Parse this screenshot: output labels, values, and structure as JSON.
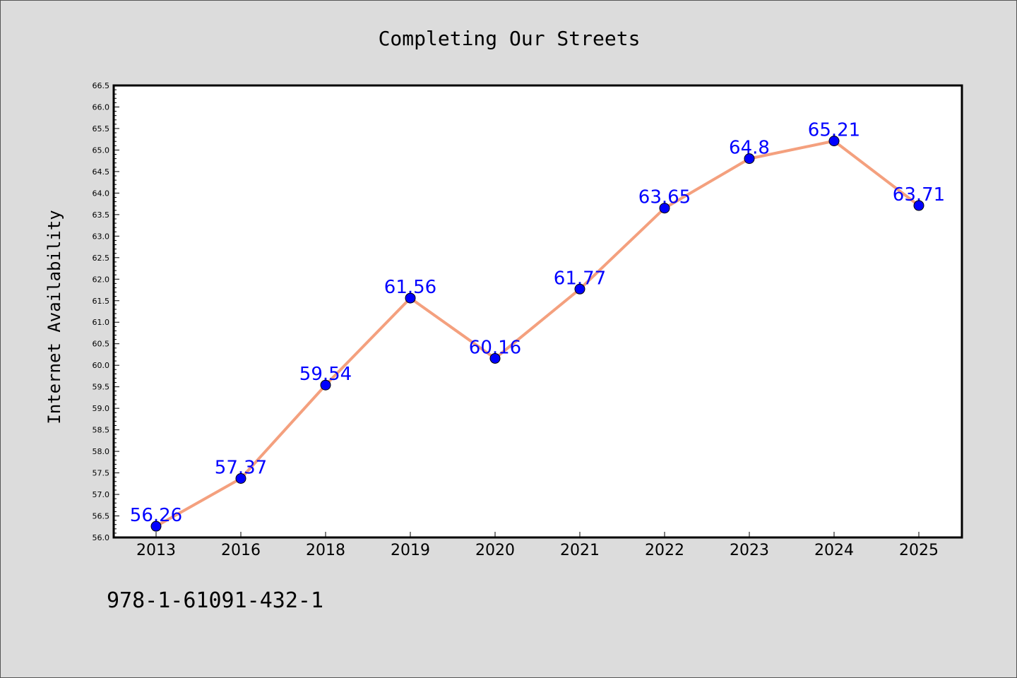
{
  "footnote": "978-1-61091-432-1",
  "colors": {
    "line": "#f4a07e",
    "marker": "#0000ff",
    "label": "#0000ff"
  },
  "chart_data": {
    "type": "line",
    "title": "Completing Our Streets",
    "xlabel": "",
    "ylabel": "Internet Availability",
    "categories": [
      "2013",
      "2016",
      "2018",
      "2019",
      "2020",
      "2021",
      "2022",
      "2023",
      "2024",
      "2025"
    ],
    "series": [
      {
        "values": [
          56.26,
          57.37,
          59.54,
          61.56,
          60.16,
          61.77,
          63.65,
          64.8,
          65.21,
          63.71
        ]
      }
    ],
    "data_labels": [
      "56.26",
      "57.37",
      "59.54",
      "61.56",
      "60.16",
      "61.77",
      "63.65",
      "64.8",
      "65.21",
      "63.71"
    ],
    "ylim": [
      56.0,
      66.5
    ],
    "ytick_step": 0.5,
    "yminor_step": 0.1,
    "grid": false,
    "legend": "none"
  }
}
